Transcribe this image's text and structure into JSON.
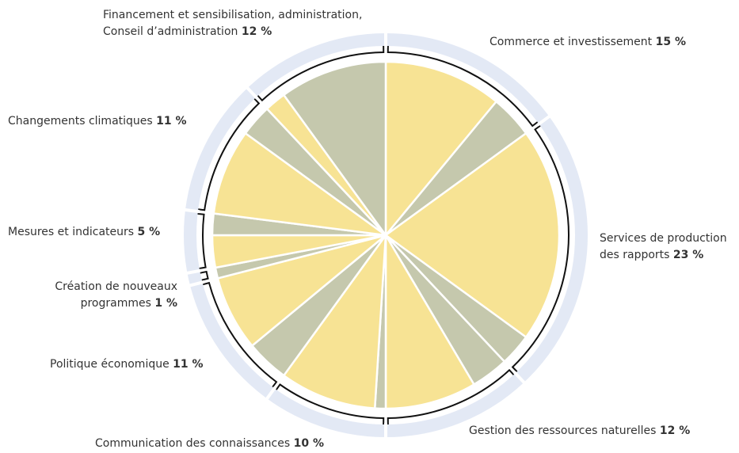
{
  "chart_data": {
    "type": "pie",
    "categories": [
      [
        "Commerce et investissement"
      ],
      [
        "Services de production",
        "des rapports"
      ],
      [
        "Gestion des ressources naturelles"
      ],
      [
        "Communication des connaissances"
      ],
      [
        "Politique économique"
      ],
      [
        "Création de nouveaux",
        "programmes"
      ],
      [
        "Mesures et indicateurs"
      ],
      [
        "Changements climatiques"
      ],
      [
        "Financement et sensibilisation, administration,",
        "Conseil d’administration"
      ]
    ],
    "values": [
      15,
      23,
      12,
      10,
      11,
      1,
      5,
      11,
      12
    ],
    "value_labels": [
      "15 %",
      "23 %",
      "12 %",
      "10 %",
      "11 %",
      "1 %",
      "5 %",
      "11 %",
      "12 %"
    ],
    "segments": [
      [
        {
          "value": 11,
          "color": "#f7e394"
        },
        {
          "value": 4,
          "color": "#c5c8ad"
        }
      ],
      [
        {
          "value": 20,
          "color": "#f7e394"
        },
        {
          "value": 3,
          "color": "#c5c8ad"
        }
      ],
      [
        {
          "value": 3.5,
          "color": "#c5c8ad"
        },
        {
          "value": 8.5,
          "color": "#f7e394"
        }
      ],
      [
        {
          "value": 1,
          "color": "#c5c8ad"
        },
        {
          "value": 9,
          "color": "#f7e394"
        }
      ],
      [
        {
          "value": 4,
          "color": "#c5c8ad"
        },
        {
          "value": 7,
          "color": "#f7e394"
        }
      ],
      [
        {
          "value": 1,
          "color": "#c5c8ad"
        }
      ],
      [
        {
          "value": 3,
          "color": "#f7e394"
        },
        {
          "value": 2,
          "color": "#c5c8ad"
        }
      ],
      [
        {
          "value": 8,
          "color": "#f7e394"
        },
        {
          "value": 3,
          "color": "#c5c8ad"
        }
      ],
      [
        {
          "value": 2,
          "color": "#f7e394"
        },
        {
          "value": 10,
          "color": "#c5c8ad"
        }
      ]
    ]
  }
}
